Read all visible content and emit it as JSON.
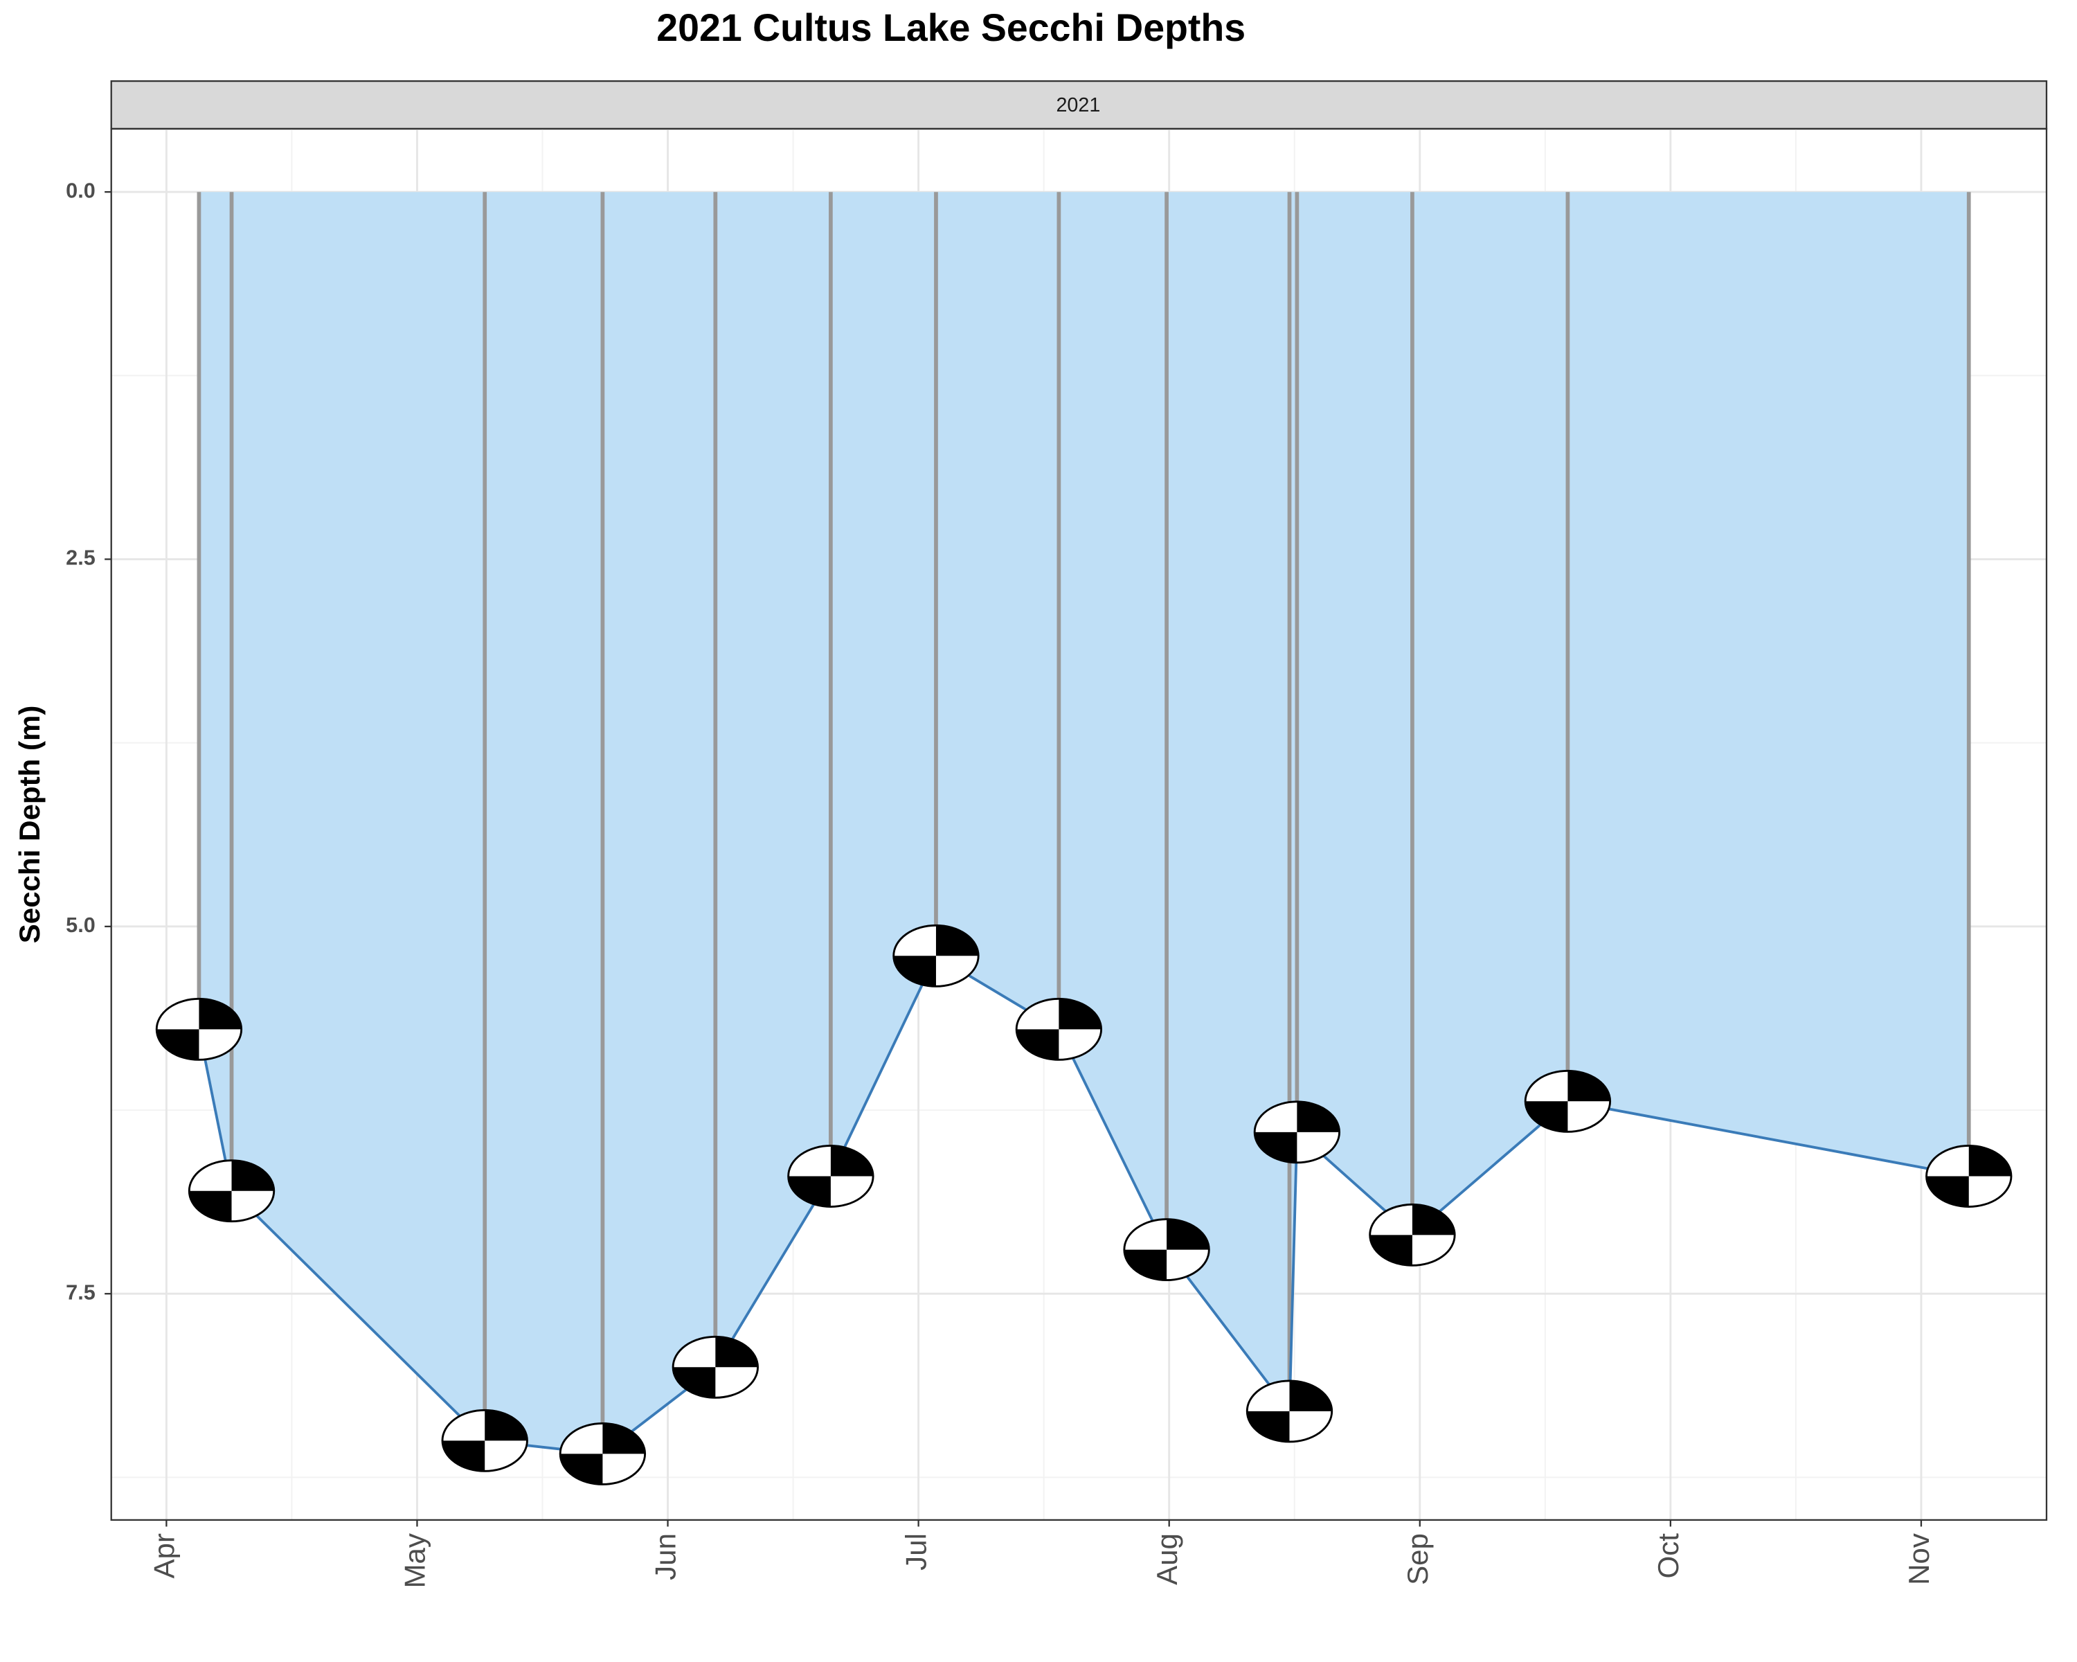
{
  "chart_data": {
    "type": "secchi",
    "title": "2021 Cultus Lake Secchi Depths",
    "panel_label": "2021",
    "y_label": "Secchi Depth (m)",
    "x": [
      4.13,
      4.26,
      5.27,
      5.74,
      6.19,
      6.65,
      7.07,
      7.56,
      7.99,
      8.48,
      8.51,
      8.97,
      9.59,
      11.19
    ],
    "values": [
      5.7,
      6.8,
      8.5,
      8.59,
      8.0,
      6.7,
      5.2,
      5.7,
      7.2,
      8.3,
      6.4,
      7.1,
      6.19,
      6.7
    ],
    "xlim": [
      3.78,
      11.5
    ],
    "xticks": [
      {
        "value": 4,
        "label": "Apr"
      },
      {
        "value": 5,
        "label": "May"
      },
      {
        "value": 6,
        "label": "Jun"
      },
      {
        "value": 7,
        "label": "Jul"
      },
      {
        "value": 8,
        "label": "Aug"
      },
      {
        "value": 9,
        "label": "Sep"
      },
      {
        "value": 10,
        "label": "Oct"
      },
      {
        "value": 11,
        "label": "Nov"
      }
    ],
    "ylim": [
      -0.43,
      9.04
    ],
    "y_reversed": true,
    "yticks": [
      {
        "value": 0,
        "label": "0.0"
      },
      {
        "value": 2.5,
        "label": "2.5"
      },
      {
        "value": 5,
        "label": "5.0"
      },
      {
        "value": 7.5,
        "label": "7.5"
      }
    ],
    "grid": true,
    "line_color": "#3a7bb8",
    "fill_color": "#bfdff6",
    "rope_color": "#999999"
  }
}
